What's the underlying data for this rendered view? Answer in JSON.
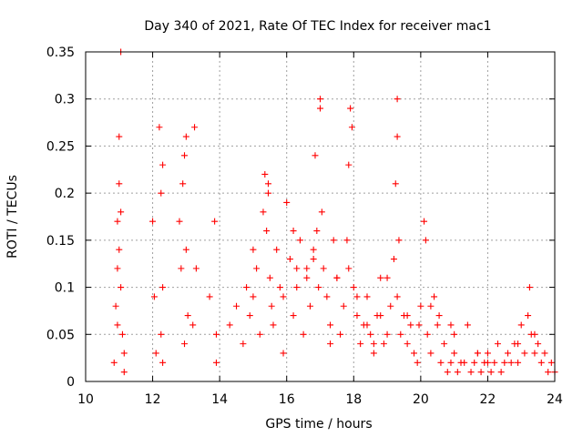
{
  "chart_data": {
    "type": "scatter",
    "title": "Day 340 of 2021, Rate Of TEC Index for receiver mac1",
    "xlabel": "GPS time / hours",
    "ylabel": "ROTI / TECUs",
    "xlim": [
      10,
      24
    ],
    "ylim": [
      0,
      0.35
    ],
    "xticks": [
      "10",
      "12",
      "14",
      "16",
      "18",
      "20",
      "22",
      "24"
    ],
    "yticks": [
      "0",
      "0.05",
      "0.1",
      "0.15",
      "0.2",
      "0.25",
      "0.3",
      "0.35"
    ],
    "grid": true,
    "marker": "plus",
    "color": "#ff0000",
    "series": [
      {
        "x": [
          10.85,
          10.9,
          10.95,
          10.95,
          11.0,
          11.0,
          11.05,
          11.05,
          11.1,
          11.05,
          11.0,
          10.95,
          11.15,
          11.15,
          12.0,
          12.05,
          12.1,
          12.2,
          12.25,
          12.3,
          12.3,
          12.25,
          12.3,
          12.8,
          12.85,
          12.9,
          12.95,
          13.0,
          13.0,
          13.05,
          12.95,
          13.25,
          13.3,
          13.2,
          13.7,
          13.85,
          13.9,
          13.9,
          14.3,
          14.5,
          14.8,
          14.9,
          15.0,
          15.1,
          15.2,
          15.3,
          15.35,
          15.4,
          15.45,
          15.5,
          15.55,
          15.6,
          15.7,
          15.8,
          15.9,
          16.0,
          16.1,
          16.2,
          16.3,
          16.4,
          16.5,
          16.6,
          16.7,
          16.8,
          16.85,
          16.9,
          16.95,
          17.0,
          17.0,
          17.05,
          17.1,
          17.2,
          17.3,
          17.4,
          17.5,
          17.6,
          17.7,
          17.8,
          17.85,
          17.9,
          17.95,
          18.0,
          18.1,
          18.2,
          18.3,
          18.4,
          18.5,
          18.6,
          18.7,
          18.8,
          18.9,
          19.0,
          19.1,
          19.2,
          19.25,
          19.3,
          19.3,
          19.35,
          19.3,
          19.4,
          19.5,
          19.6,
          19.7,
          19.8,
          19.9,
          20.0,
          20.1,
          20.15,
          20.2,
          20.3,
          20.4,
          20.5,
          20.6,
          20.7,
          20.8,
          20.9,
          21.0,
          21.1,
          21.2,
          21.3,
          21.4,
          21.5,
          21.6,
          21.7,
          21.8,
          21.9,
          22.0,
          22.1,
          22.2,
          22.3,
          22.4,
          22.5,
          22.6,
          22.7,
          22.8,
          22.9,
          23.0,
          23.1,
          23.2,
          23.25,
          23.3,
          23.4,
          23.5,
          23.6,
          23.7,
          23.8,
          23.9,
          24.0,
          15.45,
          16.2,
          17.85,
          18.1,
          18.8,
          19.0,
          19.95,
          20.3,
          20.55,
          21.0,
          16.3,
          15.9,
          16.8,
          17.5,
          18.4,
          14.7,
          15.0,
          16.6,
          19.6,
          20.9,
          17.3,
          18.6,
          22.0,
          23.4,
          21.7,
          22.9
        ],
        "y": [
          0.02,
          0.08,
          0.12,
          0.17,
          0.21,
          0.26,
          0.18,
          0.1,
          0.05,
          0.35,
          0.14,
          0.06,
          0.03,
          0.01,
          0.17,
          0.09,
          0.03,
          0.27,
          0.2,
          0.1,
          0.23,
          0.05,
          0.02,
          0.17,
          0.12,
          0.21,
          0.24,
          0.26,
          0.14,
          0.07,
          0.04,
          0.27,
          0.12,
          0.06,
          0.09,
          0.17,
          0.05,
          0.02,
          0.06,
          0.08,
          0.1,
          0.07,
          0.14,
          0.12,
          0.05,
          0.18,
          0.22,
          0.16,
          0.21,
          0.11,
          0.08,
          0.06,
          0.14,
          0.1,
          0.03,
          0.19,
          0.13,
          0.07,
          0.12,
          0.15,
          0.05,
          0.12,
          0.08,
          0.14,
          0.24,
          0.16,
          0.1,
          0.3,
          0.29,
          0.18,
          0.12,
          0.09,
          0.06,
          0.15,
          0.11,
          0.05,
          0.08,
          0.15,
          0.23,
          0.29,
          0.27,
          0.1,
          0.07,
          0.04,
          0.06,
          0.09,
          0.05,
          0.03,
          0.07,
          0.11,
          0.04,
          0.05,
          0.08,
          0.13,
          0.21,
          0.3,
          0.26,
          0.15,
          0.09,
          0.05,
          0.07,
          0.04,
          0.06,
          0.03,
          0.02,
          0.08,
          0.17,
          0.15,
          0.05,
          0.03,
          0.09,
          0.06,
          0.02,
          0.04,
          0.01,
          0.02,
          0.03,
          0.01,
          0.02,
          0.02,
          0.06,
          0.01,
          0.02,
          0.03,
          0.01,
          0.02,
          0.03,
          0.01,
          0.02,
          0.04,
          0.01,
          0.02,
          0.03,
          0.02,
          0.04,
          0.02,
          0.06,
          0.03,
          0.07,
          0.1,
          0.05,
          0.03,
          0.04,
          0.02,
          0.03,
          0.01,
          0.02,
          0.01,
          0.2,
          0.16,
          0.12,
          0.09,
          0.07,
          0.11,
          0.06,
          0.08,
          0.07,
          0.05,
          0.1,
          0.09,
          0.13,
          0.11,
          0.06,
          0.04,
          0.09,
          0.11,
          0.07,
          0.06,
          0.04,
          0.04,
          0.02,
          0.05,
          0.03,
          0.04
        ]
      }
    ]
  }
}
